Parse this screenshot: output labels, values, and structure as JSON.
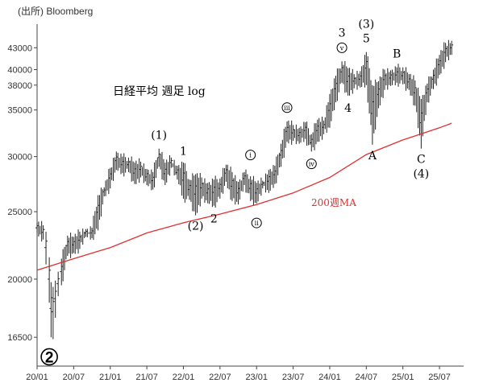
{
  "source": "(出所) Bloomberg",
  "title": "日経平均 週足 log",
  "colors": {
    "ma": "#e03030",
    "bars": "#222222",
    "axis": "#444444",
    "grid": "#d8d8d8"
  },
  "chart_data": {
    "type": "bar",
    "scale": "log",
    "title": "日経平均 週足 log",
    "ylim": [
      15000,
      46000
    ],
    "yticks": [
      "16500",
      "20000",
      "25000",
      "30000",
      "35000",
      "38000",
      "40000",
      "43000"
    ],
    "xticks": [
      "20/01",
      "20/07",
      "21/01",
      "21/07",
      "22/01",
      "22/07",
      "23/01",
      "23/07",
      "24/01",
      "24/07",
      "25/01",
      "25/07"
    ],
    "xrange": [
      "2020-01",
      "2025-10"
    ],
    "grid": false,
    "series": [
      {
        "kind": "weekly-hl",
        "points": [
          [
            "2020-01",
            23300,
            24100
          ],
          [
            "2020-02",
            22800,
            23900
          ],
          [
            "2020-02-15",
            21000,
            23400
          ],
          [
            "2020-03",
            18500,
            21500
          ],
          [
            "2020-03-10",
            16500,
            19800
          ],
          [
            "2020-03-20",
            16400,
            19500
          ],
          [
            "2020-04",
            17600,
            19900
          ],
          [
            "2020-04-15",
            18900,
            20500
          ],
          [
            "2020-05",
            19600,
            21400
          ],
          [
            "2020-06",
            21600,
            23100
          ],
          [
            "2020-07",
            21800,
            23000
          ],
          [
            "2020-08",
            22100,
            23400
          ],
          [
            "2020-09",
            23000,
            23600
          ],
          [
            "2020-10",
            22900,
            23700
          ],
          [
            "2020-11",
            23500,
            26400
          ],
          [
            "2020-12",
            26300,
            27100
          ],
          [
            "2021-01",
            27000,
            28900
          ],
          [
            "2021-02",
            28700,
            30500
          ],
          [
            "2021-03",
            28400,
            30000
          ],
          [
            "2021-04",
            28500,
            29900
          ],
          [
            "2021-05",
            27400,
            29400
          ],
          [
            "2021-06",
            28000,
            29500
          ],
          [
            "2021-07",
            27300,
            28800
          ],
          [
            "2021-08",
            26900,
            28500
          ],
          [
            "2021-09",
            29000,
            30800
          ],
          [
            "2021-10",
            27300,
            29400
          ],
          [
            "2021-11",
            28900,
            29900
          ],
          [
            "2021-12",
            27800,
            29100
          ],
          [
            "2022-01",
            26100,
            29400
          ],
          [
            "2022-02",
            26000,
            27800
          ],
          [
            "2022-03",
            24700,
            28300
          ],
          [
            "2022-04",
            26100,
            28000
          ],
          [
            "2022-05",
            25700,
            27500
          ],
          [
            "2022-06",
            25500,
            27800
          ],
          [
            "2022-07",
            26100,
            27900
          ],
          [
            "2022-08",
            27600,
            29200
          ],
          [
            "2022-09",
            25900,
            28500
          ],
          [
            "2022-10",
            25600,
            27600
          ],
          [
            "2022-11",
            27300,
            28500
          ],
          [
            "2022-12",
            25900,
            28100
          ],
          [
            "2023-01",
            25700,
            27500
          ],
          [
            "2023-02",
            27000,
            27700
          ],
          [
            "2023-03",
            26600,
            28700
          ],
          [
            "2023-04",
            27400,
            29100
          ],
          [
            "2023-05",
            29000,
            31300
          ],
          [
            "2023-06",
            31500,
            33700
          ],
          [
            "2023-07",
            31600,
            33300
          ],
          [
            "2023-08",
            31300,
            33000
          ],
          [
            "2023-09",
            31800,
            33600
          ],
          [
            "2023-10",
            30500,
            32300
          ],
          [
            "2023-11",
            31500,
            33900
          ],
          [
            "2023-12",
            32300,
            33800
          ],
          [
            "2024-01",
            33000,
            36900
          ],
          [
            "2024-02",
            35900,
            39200
          ],
          [
            "2024-03",
            38300,
            41100
          ],
          [
            "2024-04",
            36700,
            40200
          ],
          [
            "2024-05",
            37600,
            39400
          ],
          [
            "2024-06",
            37700,
            39800
          ],
          [
            "2024-07",
            38000,
            42400
          ],
          [
            "2024-08",
            31200,
            38000
          ],
          [
            "2024-09",
            35200,
            38500
          ],
          [
            "2024-10",
            37400,
            40000
          ],
          [
            "2024-11",
            37900,
            39900
          ],
          [
            "2024-12",
            38300,
            40300
          ],
          [
            "2025-01",
            38100,
            40300
          ],
          [
            "2025-02",
            37400,
            39400
          ],
          [
            "2025-03",
            35500,
            38600
          ],
          [
            "2025-04",
            30800,
            36300
          ],
          [
            "2025-05",
            35900,
            38200
          ],
          [
            "2025-06",
            37500,
            40000
          ],
          [
            "2025-07",
            39300,
            42000
          ],
          [
            "2025-08",
            41000,
            43700
          ],
          [
            "2025-09",
            42000,
            44000
          ]
        ]
      },
      {
        "name": "200週MA",
        "kind": "line",
        "points": [
          [
            "2020-01",
            20600
          ],
          [
            "2020-07",
            21400
          ],
          [
            "2021-01",
            22200
          ],
          [
            "2021-07",
            23300
          ],
          [
            "2022-01",
            24100
          ],
          [
            "2022-07",
            24800
          ],
          [
            "2023-01",
            25600
          ],
          [
            "2023-07",
            26600
          ],
          [
            "2024-01",
            28000
          ],
          [
            "2024-07",
            30200
          ],
          [
            "2025-01",
            31700
          ],
          [
            "2025-07",
            33000
          ],
          [
            "2025-09",
            33500
          ]
        ]
      }
    ],
    "annotations": [
      {
        "text": "(1)",
        "at": [
          "2021-09",
          30800
        ],
        "pos": "above",
        "circled": false
      },
      {
        "text": "1",
        "at": [
          "2022-01",
          29200
        ],
        "pos": "above",
        "circled": false
      },
      {
        "text": "2",
        "at": [
          "2022-06",
          25300
        ],
        "pos": "below",
        "circled": false
      },
      {
        "text": "(2)",
        "at": [
          "2022-03",
          24700
        ],
        "pos": "below",
        "circled": false
      },
      {
        "text": "i",
        "at": [
          "2022-12",
          28900
        ],
        "pos": "above",
        "circled": true
      },
      {
        "text": "ii",
        "at": [
          "2023-01",
          25000
        ],
        "pos": "below",
        "circled": true
      },
      {
        "text": "iii",
        "at": [
          "2023-06",
          33800
        ],
        "pos": "above",
        "circled": true
      },
      {
        "text": "iv",
        "at": [
          "2023-10",
          30400
        ],
        "pos": "below",
        "circled": true
      },
      {
        "text": "v",
        "at": [
          "2024-03",
          41200
        ],
        "pos": "above",
        "circled": true
      },
      {
        "text": "3",
        "at": [
          "2024-03",
          41200
        ],
        "pos": "above2",
        "circled": false
      },
      {
        "text": "4",
        "at": [
          "2024-04",
          36500
        ],
        "pos": "below",
        "circled": false
      },
      {
        "text": "5",
        "at": [
          "2024-07",
          42400
        ],
        "pos": "above",
        "circled": false
      },
      {
        "text": "(3)",
        "at": [
          "2024-07",
          42400
        ],
        "pos": "above2",
        "circled": false
      },
      {
        "text": "A",
        "at": [
          "2024-08",
          31200
        ],
        "pos": "below",
        "circled": false
      },
      {
        "text": "B",
        "at": [
          "2024-12",
          40300
        ],
        "pos": "above",
        "circled": false
      },
      {
        "text": "C",
        "at": [
          "2025-04",
          30800
        ],
        "pos": "below",
        "circled": false
      },
      {
        "text": "(4)",
        "at": [
          "2025-04",
          30800
        ],
        "pos": "below2",
        "circled": false
      },
      {
        "text": "2",
        "at": [
          "2020-03",
          16400
        ],
        "pos": "below",
        "circled": true,
        "big": true
      }
    ],
    "ma_label": "200週MA"
  }
}
